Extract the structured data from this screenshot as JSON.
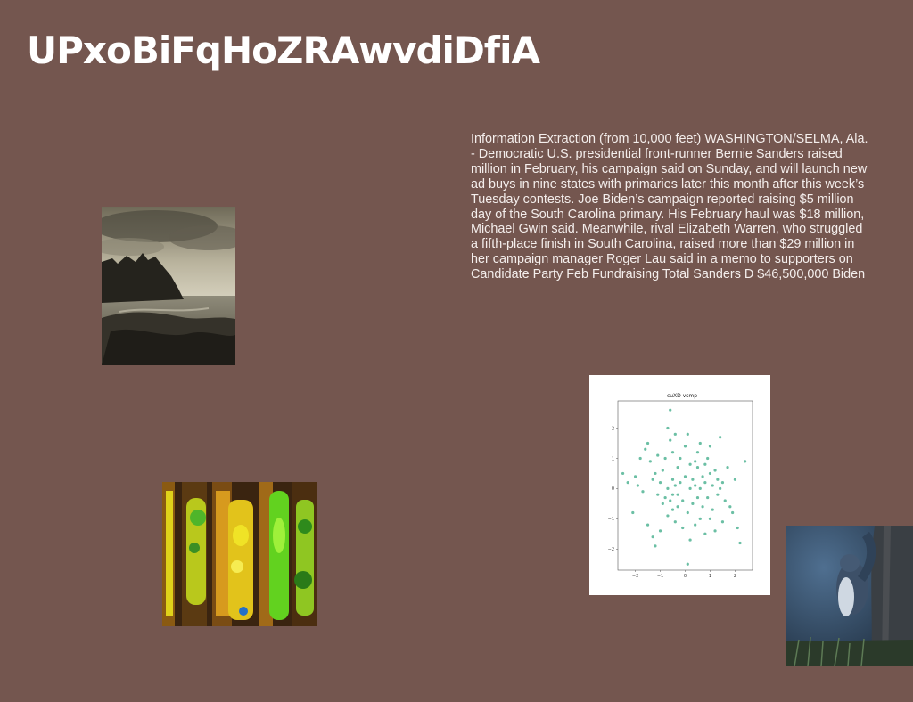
{
  "page": {
    "title": "UPxoBiFqHoZRAwvdiDfiA",
    "background": "#74564f"
  },
  "article": {
    "lines": [
      "Information Extraction (from 10,000 feet) WASHINGTON/SELMA, Ala.",
      "- Democratic U.S. presidential front-runner Bernie Sanders raised",
      "million in February, his campaign said on Sunday, and will launch new",
      "ad buys in nine states with primaries later this month after this week’s",
      "Tuesday contests. Joe Biden’s campaign reported raising $5 million",
      "day of the South Carolina primary. His February haul was $18 million,",
      "Michael Gwin said. Meanwhile, rival Elizabeth Warren, who struggled",
      "a fifth-place finish in South Carolina, raised more than $29 million in",
      "her campaign manager Roger Lau said in a memo to supporters on",
      "Candidate Party Feb Fundraising Total Sanders D $46,500,000 Biden"
    ]
  },
  "images": [
    {
      "name": "sea-cliff-photo",
      "subject": "rocky coastal cliff under clouds, sepia"
    },
    {
      "name": "lava-lamps-photo",
      "subject": "rows of green and yellow lava lamps"
    },
    {
      "name": "squirrel-photo",
      "subject": "squirrel beside a tree trunk, blue tint"
    }
  ],
  "chart_data": {
    "type": "scatter",
    "title": "cuXD vsmp",
    "xlabel": "",
    "ylabel": "",
    "xlim": [
      -2.7,
      2.7
    ],
    "ylim": [
      -2.7,
      2.9
    ],
    "xticks": [
      -2,
      -1,
      0,
      1,
      2
    ],
    "yticks": [
      -2,
      -1,
      0,
      1,
      2
    ],
    "grid": false,
    "color": "#3aaa86",
    "x": [
      -0.6,
      -2.5,
      -2.3,
      -2.1,
      -2.0,
      -1.9,
      -1.8,
      -1.7,
      -1.6,
      -1.5,
      -1.5,
      -1.4,
      -1.3,
      -1.3,
      -1.2,
      -1.2,
      -1.1,
      -1.1,
      -1.0,
      -1.0,
      -0.9,
      -0.9,
      -0.8,
      -0.8,
      -0.7,
      -0.7,
      -0.7,
      -0.6,
      -0.6,
      -0.5,
      -0.5,
      -0.5,
      -0.4,
      -0.4,
      -0.4,
      -0.3,
      -0.3,
      -0.3,
      -0.2,
      -0.2,
      -0.1,
      -0.1,
      0.0,
      0.0,
      0.1,
      0.1,
      0.2,
      0.2,
      0.2,
      0.3,
      0.3,
      0.4,
      0.4,
      0.4,
      0.5,
      0.5,
      0.5,
      0.6,
      0.6,
      0.6,
      0.7,
      0.7,
      0.8,
      0.8,
      0.8,
      0.9,
      0.9,
      1.0,
      1.0,
      1.0,
      1.1,
      1.1,
      1.2,
      1.2,
      1.3,
      1.3,
      1.4,
      1.5,
      1.5,
      1.6,
      1.7,
      1.8,
      1.9,
      2.0,
      2.1,
      2.2,
      2.4,
      -0.5,
      0.1,
      1.4
    ],
    "y": [
      2.6,
      0.5,
      0.2,
      -0.8,
      0.4,
      0.1,
      1.0,
      -0.1,
      1.3,
      1.5,
      -1.2,
      0.9,
      0.3,
      -1.6,
      0.5,
      -1.9,
      1.1,
      -0.2,
      0.2,
      -1.4,
      0.6,
      -0.5,
      1.0,
      -0.3,
      2.0,
      0.0,
      -0.9,
      1.6,
      -0.4,
      0.3,
      -0.7,
      1.2,
      1.8,
      0.1,
      -1.1,
      0.7,
      -0.2,
      -0.6,
      1.0,
      0.2,
      -0.4,
      -1.3,
      1.4,
      0.4,
      -0.8,
      1.8,
      0.8,
      0.0,
      -1.7,
      0.3,
      -0.5,
      0.9,
      0.1,
      -1.2,
      0.7,
      -0.3,
      1.2,
      0.0,
      -1.0,
      1.5,
      0.4,
      -0.6,
      0.8,
      0.2,
      -1.5,
      1.0,
      -0.3,
      0.5,
      -1.0,
      1.4,
      0.1,
      -0.7,
      0.6,
      -1.4,
      0.3,
      -0.2,
      1.7,
      0.2,
      -1.1,
      -0.4,
      0.7,
      -0.6,
      -0.8,
      0.3,
      -1.3,
      -1.8,
      0.9,
      -0.2,
      -2.5,
      0.0
    ]
  }
}
